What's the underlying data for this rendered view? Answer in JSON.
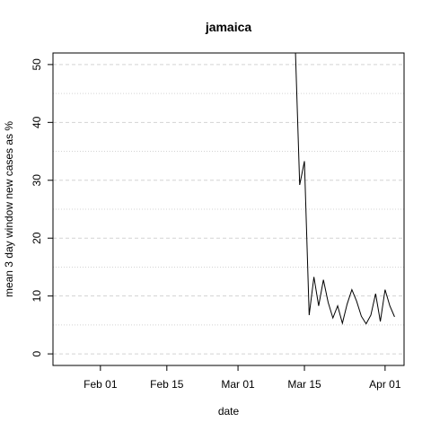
{
  "chart_data": {
    "type": "line",
    "title": "jamaica",
    "xlabel": "date",
    "ylabel": "mean  3  day window new cases as %",
    "x_tick_labels": [
      "Feb 01",
      "Feb 15",
      "Mar 01",
      "Mar 15",
      "Apr 01"
    ],
    "x_tick_dates": [
      "2020-02-01",
      "2020-02-15",
      "2020-03-01",
      "2020-03-15",
      "2020-04-01"
    ],
    "y_tick_labels": [
      "0",
      "10",
      "20",
      "30",
      "40",
      "50"
    ],
    "y_ticks": [
      0,
      10,
      20,
      30,
      40,
      50
    ],
    "xlim": [
      "2020-01-22",
      "2020-04-05"
    ],
    "ylim": [
      -2,
      52
    ],
    "grid": true,
    "line_color": "#000000",
    "grid_color": "#d3d3d3",
    "series": [
      {
        "x": [
          "2020-01-22",
          "2020-01-23",
          "2020-01-24",
          "2020-03-13",
          "2020-03-14",
          "2020-03-15",
          "2020-03-16",
          "2020-03-17",
          "2020-03-18",
          "2020-03-19",
          "2020-03-20",
          "2020-03-21",
          "2020-03-22",
          "2020-03-23",
          "2020-03-24",
          "2020-03-25",
          "2020-03-26",
          "2020-03-27",
          "2020-03-28",
          "2020-03-29",
          "2020-03-30",
          "2020-03-31",
          "2020-04-01",
          "2020-04-02",
          "2020-04-03"
        ],
        "values": [
          55,
          null,
          null,
          55,
          29.2,
          33.3,
          6.7,
          13.3,
          8.3,
          12.8,
          8.9,
          6.2,
          8.3,
          5.3,
          8.6,
          11.1,
          9.1,
          6.5,
          5.2,
          6.7,
          10.4,
          5.6,
          11.1,
          8.3,
          6.4
        ]
      }
    ]
  }
}
